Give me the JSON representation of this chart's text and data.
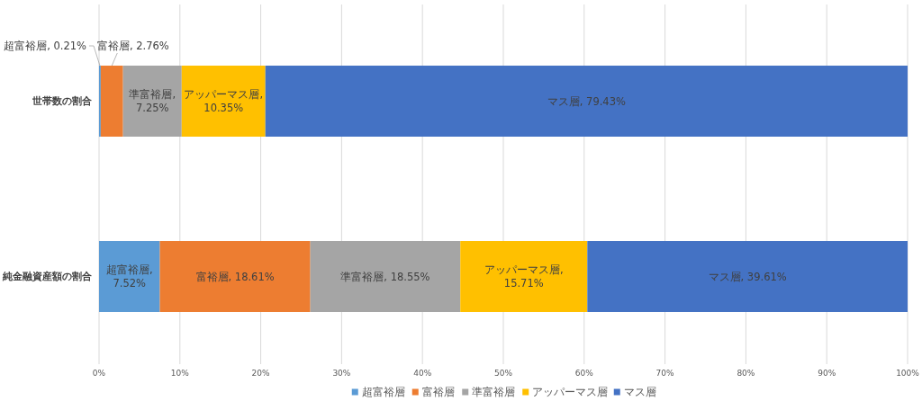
{
  "chart_data": {
    "type": "bar",
    "orientation": "horizontal",
    "stacked": true,
    "categories": [
      "世帯数の割合",
      "純金融資産額の割合"
    ],
    "series": [
      {
        "name": "超富裕層",
        "color": "#5b9bd5",
        "values": [
          0.21,
          7.52
        ],
        "value_labels": [
          "超富裕層, 0.21%",
          "超富裕層, 7.52%"
        ]
      },
      {
        "name": "富裕層",
        "color": "#ed7d31",
        "values": [
          2.76,
          18.61
        ],
        "value_labels": [
          "富裕層, 2.76%",
          "富裕層, 18.61%"
        ]
      },
      {
        "name": "準富裕層",
        "color": "#a5a5a5",
        "values": [
          7.25,
          18.55
        ],
        "value_labels": [
          "準富裕層, 7.25%",
          "準富裕層, 18.55%"
        ]
      },
      {
        "name": "アッパーマス層",
        "color": "#ffc000",
        "values": [
          10.35,
          15.71
        ],
        "value_labels": [
          "アッパーマス層, 10.35%",
          "アッパーマス層, 15.71%"
        ]
      },
      {
        "name": "マス層",
        "color": "#4472c4",
        "values": [
          79.43,
          39.61
        ],
        "value_labels": [
          "マス層, 79.43%",
          "マス層, 39.61%"
        ]
      }
    ],
    "xlim": [
      0,
      100
    ],
    "xticks": [
      {
        "value": 0,
        "label": "0%"
      },
      {
        "value": 10,
        "label": "10%"
      },
      {
        "value": 20,
        "label": "20%"
      },
      {
        "value": 30,
        "label": "30%"
      },
      {
        "value": 40,
        "label": "40%"
      },
      {
        "value": 50,
        "label": "50%"
      },
      {
        "value": 60,
        "label": "60%"
      },
      {
        "value": 70,
        "label": "70%"
      },
      {
        "value": 80,
        "label": "80%"
      },
      {
        "value": 90,
        "label": "90%"
      },
      {
        "value": 100,
        "label": "100%"
      }
    ],
    "grid": "x",
    "legend": "bottom"
  }
}
